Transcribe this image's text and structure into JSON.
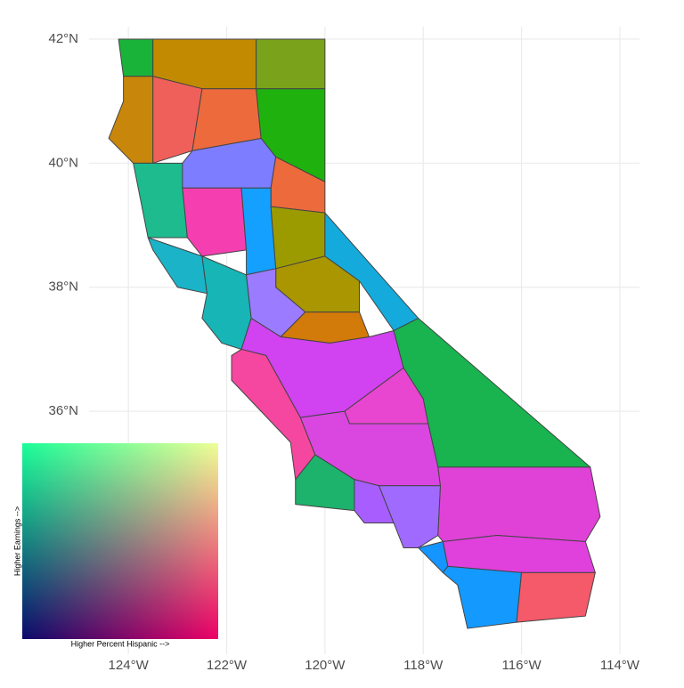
{
  "chart_data": {
    "type": "choropleth",
    "xlim": [
      -124.8,
      -113.6
    ],
    "ylim": [
      32.3,
      42.2
    ],
    "xticks": [
      {
        "value": -124,
        "label": "124°W"
      },
      {
        "value": -122,
        "label": "122°W"
      },
      {
        "value": -120,
        "label": "120°W"
      },
      {
        "value": -118,
        "label": "118°W"
      },
      {
        "value": -116,
        "label": "116°W"
      },
      {
        "value": -114,
        "label": "114°W"
      }
    ],
    "yticks": [
      {
        "value": 36,
        "label": "36°N"
      },
      {
        "value": 38,
        "label": "38°N"
      },
      {
        "value": 40,
        "label": "40°N"
      },
      {
        "value": 42,
        "label": "42°N"
      }
    ],
    "grid": true,
    "regions": [
      {
        "color": "#19b33a"
      },
      {
        "color": "#c28a00"
      },
      {
        "color": "#7aa21a"
      },
      {
        "color": "#c8860a"
      },
      {
        "color": "#f0605a"
      },
      {
        "color": "#ec6a3c"
      },
      {
        "color": "#1fb20e"
      },
      {
        "color": "#1dbb8e"
      },
      {
        "color": "#7d7dff"
      },
      {
        "color": "#ec6a3c"
      },
      {
        "color": "#f53fb0"
      },
      {
        "color": "#14a0ff"
      },
      {
        "color": "#9b9b00"
      },
      {
        "color": "#14aadc"
      },
      {
        "color": "#1bb3c8"
      },
      {
        "color": "#17b5b5"
      },
      {
        "color": "#a99600"
      },
      {
        "color": "#9b7bff"
      },
      {
        "color": "#d27a0a"
      },
      {
        "color": "#d142f0"
      },
      {
        "color": "#19b350"
      },
      {
        "color": "#e845d0"
      },
      {
        "color": "#f5479f"
      },
      {
        "color": "#d946e0"
      },
      {
        "color": "#1db36c"
      },
      {
        "color": "#a85eff"
      },
      {
        "color": "#a06aff"
      },
      {
        "color": "#e042d8"
      },
      {
        "color": "#e040dc"
      },
      {
        "color": "#1595ff"
      },
      {
        "color": "#1499ff"
      },
      {
        "color": "#f45a6a"
      }
    ],
    "legend": {
      "x_label": "Higher Percent Hispanic -->",
      "y_label": "Higher Earnings -->"
    }
  }
}
